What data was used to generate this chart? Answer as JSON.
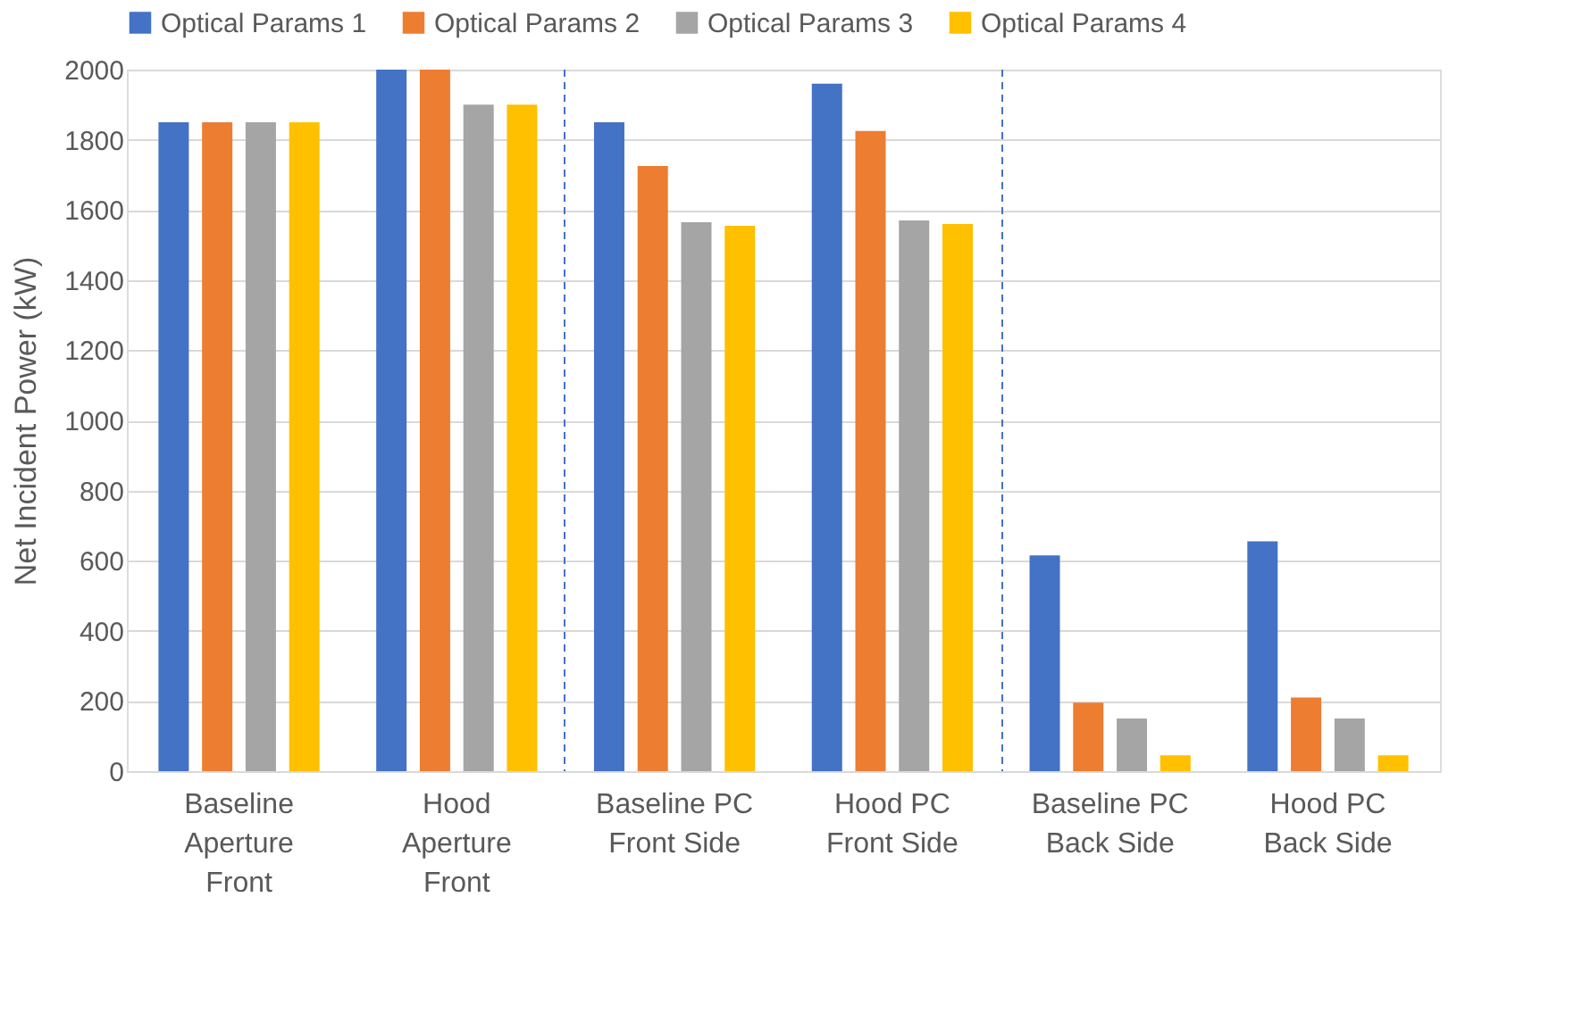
{
  "chart_data": {
    "type": "bar",
    "ylabel": "Net Incident Power (kW)",
    "categories": [
      "Baseline\nAperture\nFront",
      "Hood\nAperture\nFront",
      "Baseline PC\nFront Side",
      "Hood PC\nFront Side",
      "Baseline PC\nBack Side",
      "Hood PC\nBack Side"
    ],
    "series": [
      {
        "name": "Optical Params 1",
        "color": "#4472c4",
        "values": [
          1850,
          2000,
          1850,
          1960,
          615,
          655
        ]
      },
      {
        "name": "Optical Params 2",
        "color": "#ed7d31",
        "values": [
          1850,
          2000,
          1725,
          1825,
          195,
          210
        ]
      },
      {
        "name": "Optical Params 3",
        "color": "#a5a5a5",
        "values": [
          1850,
          1900,
          1565,
          1570,
          150,
          150
        ]
      },
      {
        "name": "Optical Params 4",
        "color": "#ffc000",
        "values": [
          1850,
          1900,
          1555,
          1560,
          45,
          45
        ]
      }
    ],
    "ylim": [
      0,
      2000
    ],
    "yticks": [
      0,
      200,
      400,
      600,
      800,
      1000,
      1200,
      1400,
      1600,
      1800,
      2000
    ],
    "grid": "y",
    "legend": "top"
  }
}
